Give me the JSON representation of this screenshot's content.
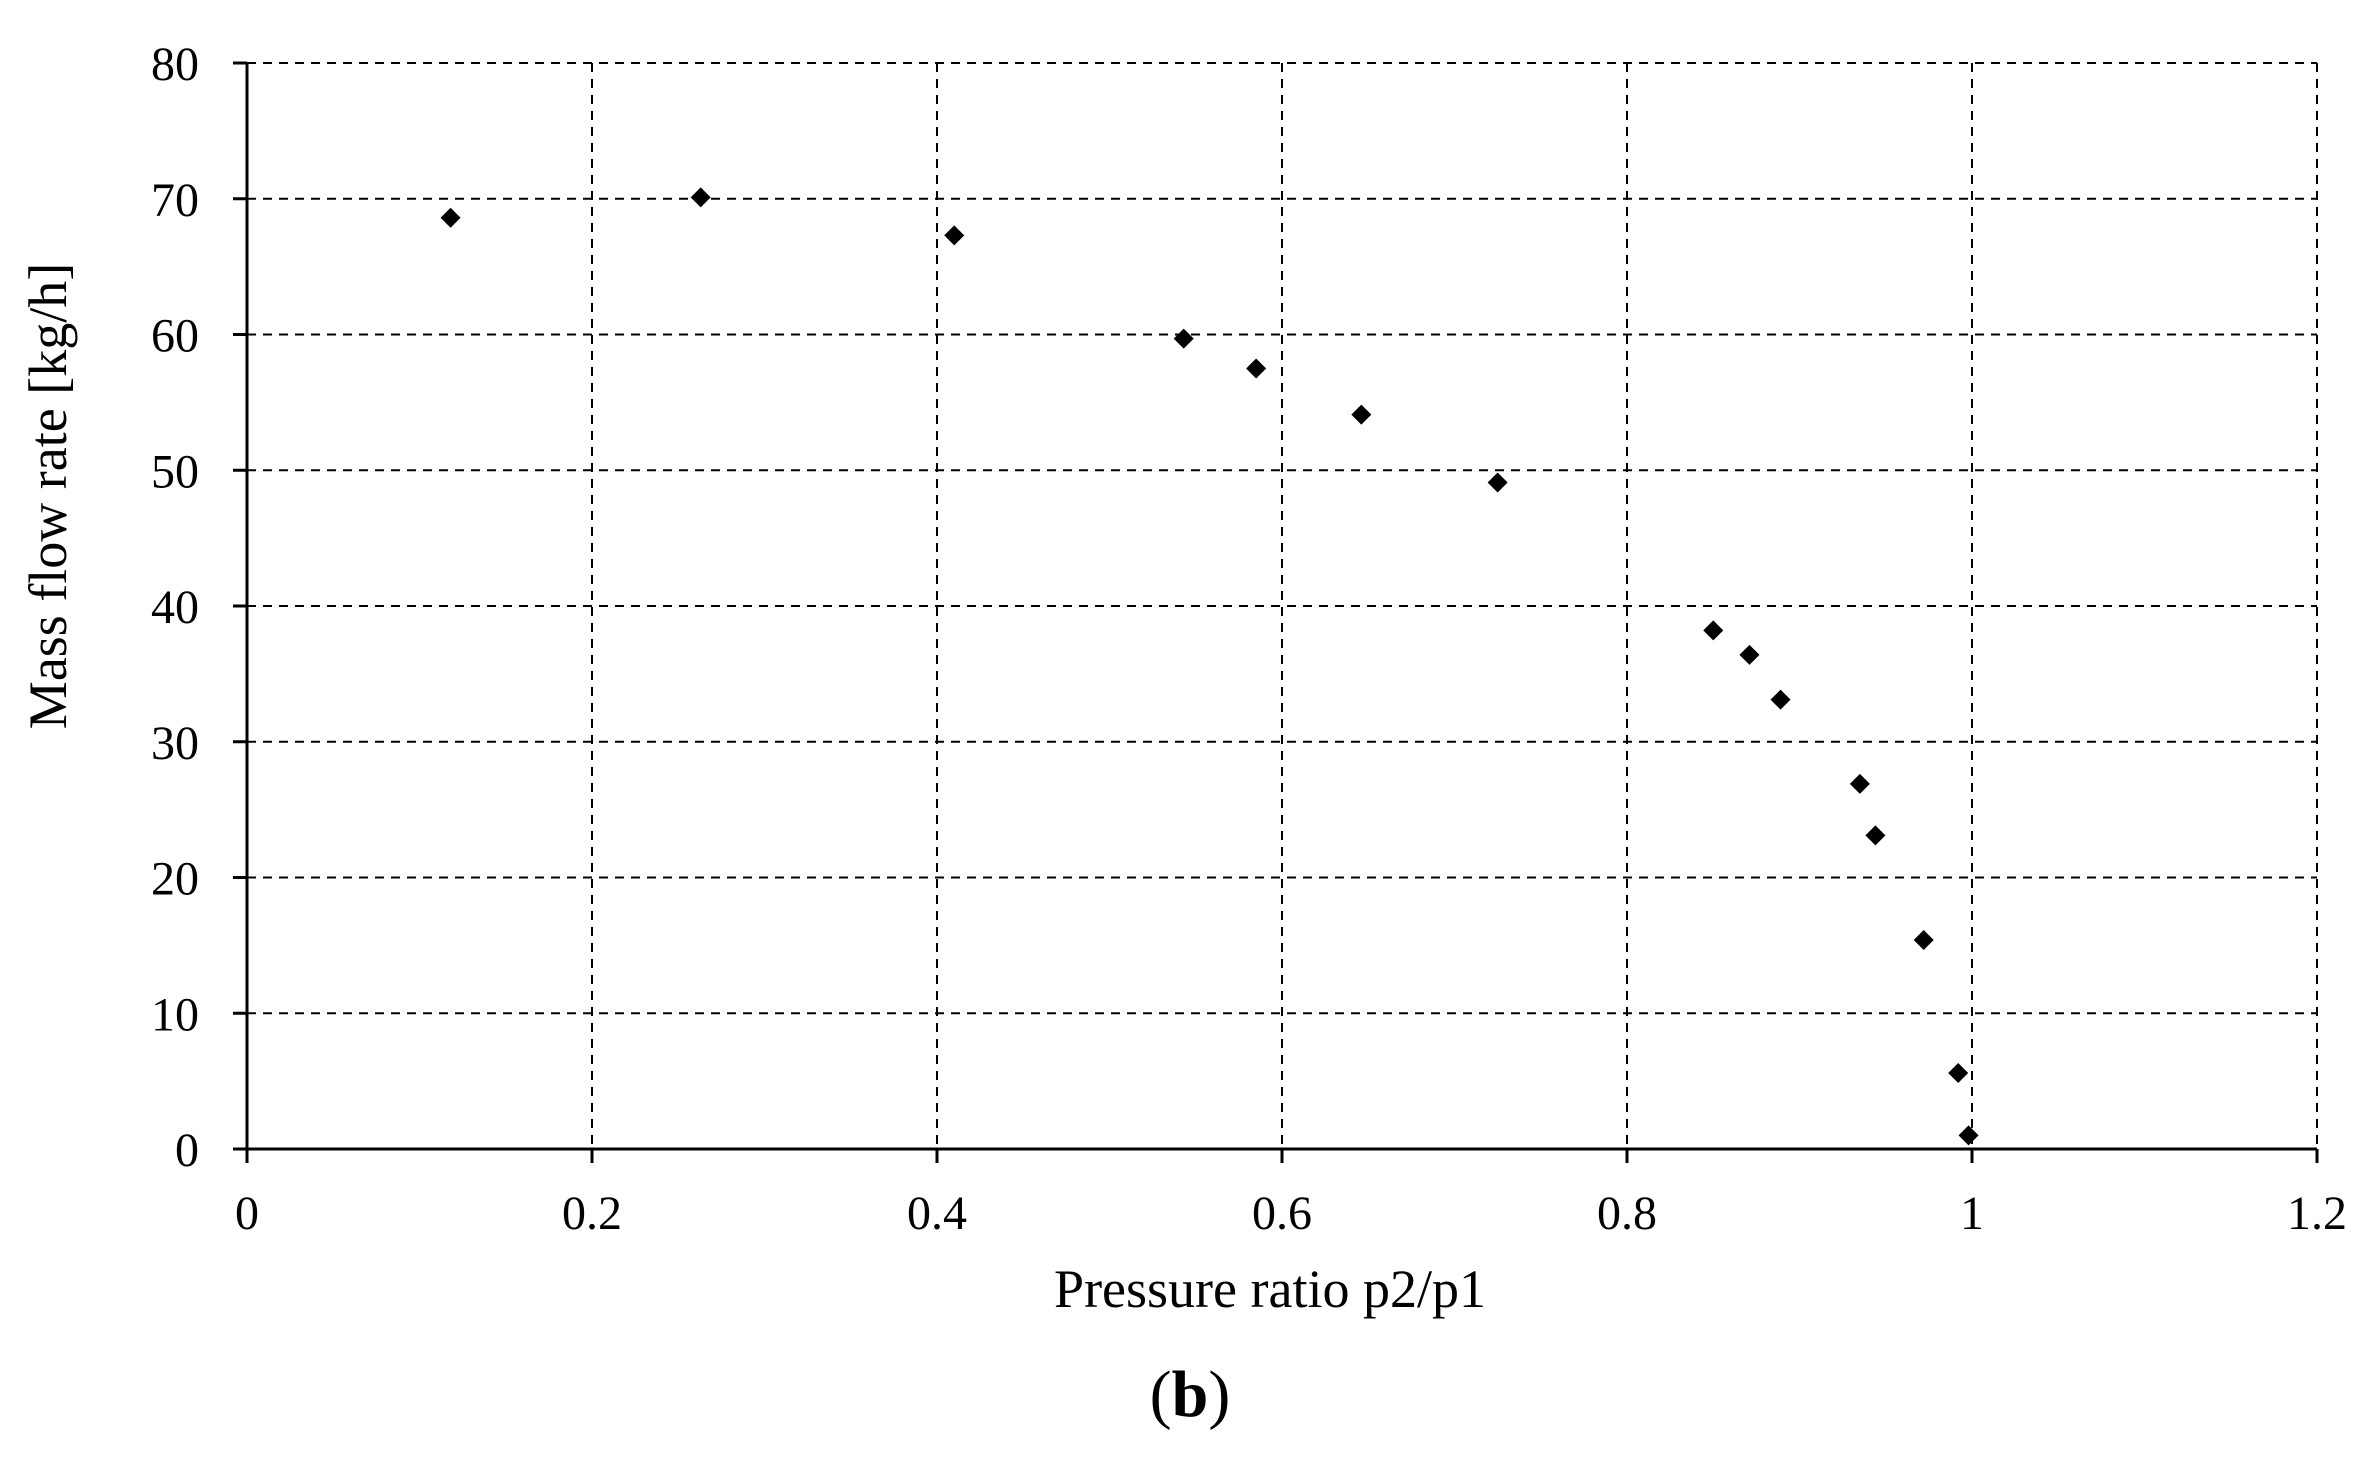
{
  "chart_data": {
    "type": "scatter",
    "xlabel": "Pressure ratio p2/p1",
    "ylabel": "Mass flow rate [kg/h]",
    "panel_label": {
      "open": "(",
      "letter": "b",
      "close": ")"
    },
    "xlim": [
      0,
      1.2
    ],
    "ylim": [
      0,
      80
    ],
    "x_ticks": [
      0,
      0.2,
      0.4,
      0.6,
      0.8,
      1.0,
      1.2
    ],
    "x_tick_labels": [
      "0",
      "0.2",
      "0.4",
      "0.6",
      "0.8",
      "1",
      "1.2"
    ],
    "y_ticks": [
      0,
      10,
      20,
      30,
      40,
      50,
      60,
      70,
      80
    ],
    "y_tick_labels": [
      "0",
      "10",
      "20",
      "30",
      "40",
      "50",
      "60",
      "70",
      "80"
    ],
    "grid": true,
    "marker": "diamond",
    "marker_color": "#000000",
    "points": [
      {
        "x": 0.118,
        "y": 68.6
      },
      {
        "x": 0.263,
        "y": 70.1
      },
      {
        "x": 0.41,
        "y": 67.3
      },
      {
        "x": 0.543,
        "y": 59.7
      },
      {
        "x": 0.585,
        "y": 57.5
      },
      {
        "x": 0.646,
        "y": 54.1
      },
      {
        "x": 0.725,
        "y": 49.1
      },
      {
        "x": 0.85,
        "y": 38.2
      },
      {
        "x": 0.871,
        "y": 36.4
      },
      {
        "x": 0.889,
        "y": 33.1
      },
      {
        "x": 0.935,
        "y": 26.9
      },
      {
        "x": 0.944,
        "y": 23.1
      },
      {
        "x": 0.972,
        "y": 15.4
      },
      {
        "x": 0.992,
        "y": 5.6
      },
      {
        "x": 0.998,
        "y": 1.0
      }
    ]
  }
}
